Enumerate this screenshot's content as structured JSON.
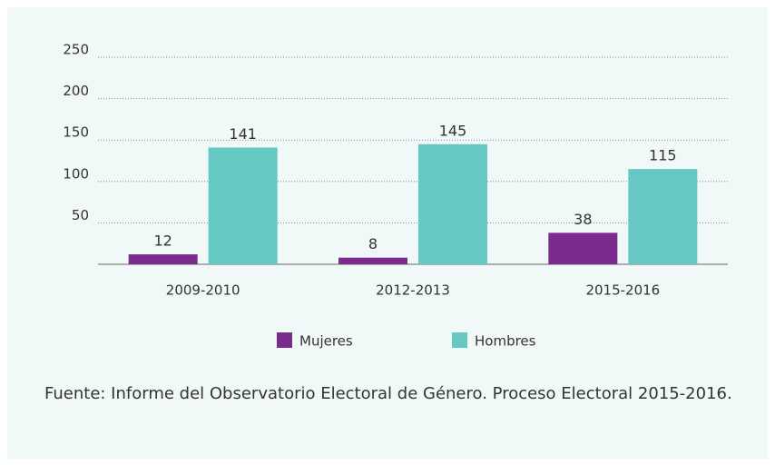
{
  "chart_data": {
    "type": "bar",
    "categories": [
      "2009-2010",
      "2012-2013",
      "2015-2016"
    ],
    "series": [
      {
        "name": "Mujeres",
        "color": "#7b2a8e",
        "values": [
          12,
          8,
          38
        ]
      },
      {
        "name": "Hombres",
        "color": "#66c8c2",
        "values": [
          141,
          145,
          115
        ]
      }
    ],
    "ylim": [
      0,
      250
    ],
    "yticks": [
      50,
      100,
      150,
      200,
      250
    ],
    "grid": true,
    "legend": "bottom",
    "note": "Fuente: Informe del Observatorio Electoral de Género. Proceso Electoral 2015-2016."
  }
}
